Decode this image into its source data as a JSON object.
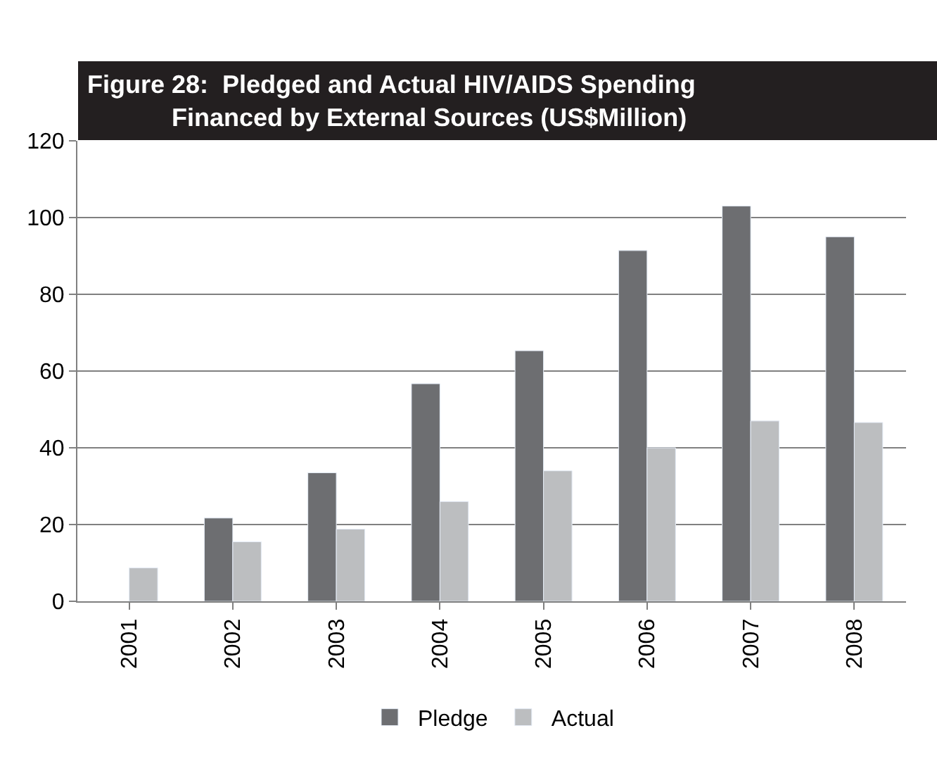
{
  "chart_data": {
    "type": "bar",
    "title": "Figure 28:  Pledged and Actual HIV/AIDS Spending\n            Financed by External Sources (US$Million)",
    "categories": [
      "2001",
      "2002",
      "2003",
      "2004",
      "2005",
      "2006",
      "2007",
      "2008"
    ],
    "series": [
      {
        "name": "Pledge",
        "color": "#6d6e71",
        "values": [
          null,
          21.7,
          33.5,
          56.7,
          65.3,
          91.4,
          103,
          95
        ]
      },
      {
        "name": "Actual",
        "color": "#bcbec0",
        "values": [
          8.7,
          15.5,
          18.8,
          26,
          34,
          40,
          47,
          46.6
        ]
      }
    ],
    "ylim": [
      0,
      120
    ],
    "yticks": [
      0,
      20,
      40,
      60,
      80,
      100,
      120
    ],
    "grid": "y",
    "legend": "bottom"
  }
}
